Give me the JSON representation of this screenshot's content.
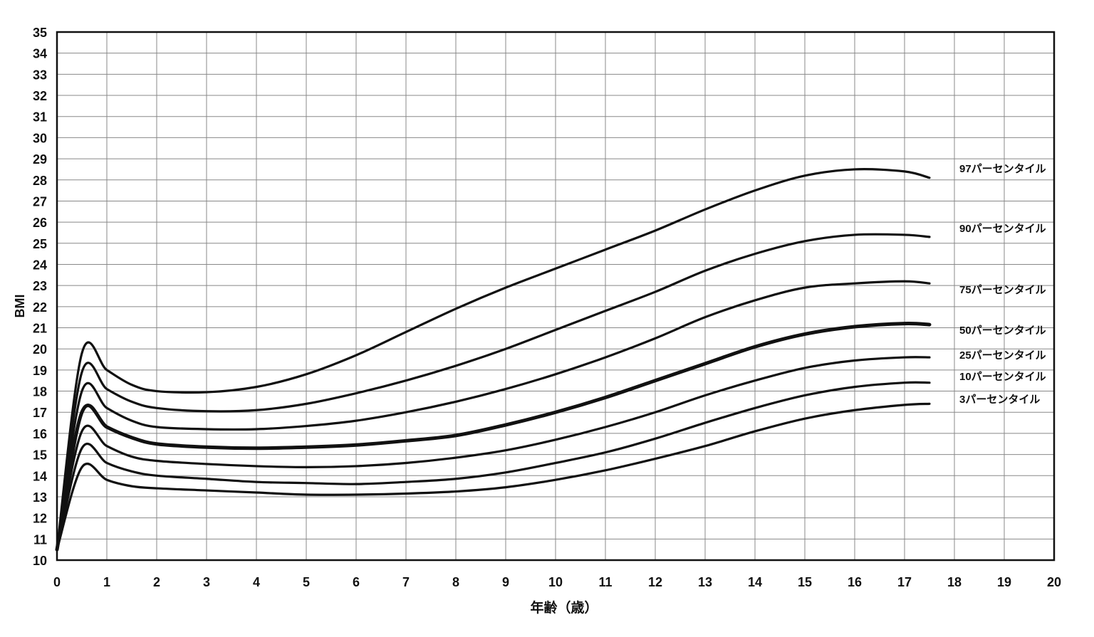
{
  "chart_data": {
    "type": "line",
    "title": "",
    "xlabel": "年齢（歳）",
    "ylabel": "BMI",
    "xlim": [
      0,
      20
    ],
    "ylim": [
      10,
      35
    ],
    "xticks": [
      0,
      1,
      2,
      3,
      4,
      5,
      6,
      7,
      8,
      9,
      10,
      11,
      12,
      13,
      14,
      15,
      16,
      17,
      18,
      19,
      20
    ],
    "yticks": [
      10,
      11,
      12,
      13,
      14,
      15,
      16,
      17,
      18,
      19,
      20,
      21,
      22,
      23,
      24,
      25,
      26,
      27,
      28,
      29,
      30,
      31,
      32,
      33,
      34,
      35
    ],
    "grid": true,
    "line_color": "#111111",
    "x": [
      0,
      0.5,
      1,
      1.5,
      2,
      3,
      4,
      5,
      6,
      7,
      8,
      9,
      10,
      11,
      12,
      13,
      14,
      15,
      16,
      17,
      17.5
    ],
    "series": [
      {
        "name": "97パーセンタイル",
        "values": [
          10.5,
          19.8,
          19.0,
          18.3,
          18.0,
          17.95,
          18.2,
          18.8,
          19.7,
          20.8,
          21.9,
          22.9,
          23.8,
          24.7,
          25.6,
          26.6,
          27.5,
          28.2,
          28.5,
          28.4,
          28.1
        ]
      },
      {
        "name": "90パーセンタイル",
        "values": [
          10.5,
          18.9,
          18.1,
          17.5,
          17.2,
          17.05,
          17.1,
          17.4,
          17.9,
          18.5,
          19.2,
          20.0,
          20.9,
          21.8,
          22.7,
          23.7,
          24.5,
          25.1,
          25.4,
          25.4,
          25.3
        ]
      },
      {
        "name": "75パーセンタイル",
        "values": [
          10.5,
          18.0,
          17.2,
          16.6,
          16.3,
          16.2,
          16.2,
          16.35,
          16.6,
          17.0,
          17.5,
          18.1,
          18.8,
          19.6,
          20.5,
          21.5,
          22.3,
          22.9,
          23.1,
          23.2,
          23.1
        ]
      },
      {
        "name": "50パーセンタイル",
        "values": [
          10.5,
          17.0,
          16.3,
          15.8,
          15.5,
          15.35,
          15.3,
          15.35,
          15.45,
          15.65,
          15.9,
          16.4,
          17.0,
          17.7,
          18.5,
          19.3,
          20.1,
          20.7,
          21.05,
          21.2,
          21.15
        ]
      },
      {
        "name": "25パーセンタイル",
        "values": [
          10.5,
          16.1,
          15.4,
          14.9,
          14.7,
          14.55,
          14.45,
          14.4,
          14.45,
          14.6,
          14.85,
          15.2,
          15.7,
          16.3,
          17.0,
          17.8,
          18.5,
          19.1,
          19.45,
          19.6,
          19.6
        ]
      },
      {
        "name": "10パーセンタイル",
        "values": [
          10.5,
          15.3,
          14.6,
          14.2,
          14.0,
          13.85,
          13.7,
          13.65,
          13.6,
          13.7,
          13.85,
          14.15,
          14.6,
          15.1,
          15.75,
          16.5,
          17.2,
          17.8,
          18.2,
          18.4,
          18.4
        ]
      },
      {
        "name": "3パーセンタイル",
        "values": [
          10.5,
          14.4,
          13.8,
          13.5,
          13.4,
          13.3,
          13.2,
          13.1,
          13.1,
          13.15,
          13.25,
          13.45,
          13.8,
          14.25,
          14.8,
          15.4,
          16.1,
          16.7,
          17.1,
          17.35,
          17.4
        ]
      }
    ]
  }
}
